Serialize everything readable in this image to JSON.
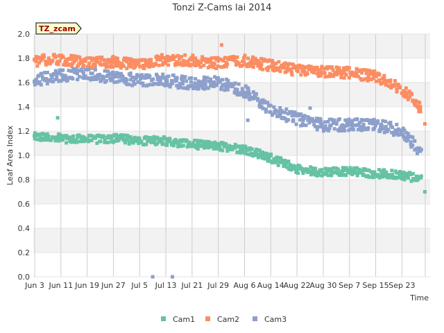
{
  "chart_data": {
    "type": "scatter",
    "title": "Tonzi Z-Cams lai 2014",
    "station_label": "TZ_zcam",
    "xlabel": "Time",
    "ylabel": "Leaf Area Index",
    "ylim": [
      0,
      2.0
    ],
    "yticks": [
      "0.0",
      "0.2",
      "0.4",
      "0.6",
      "0.8",
      "1.0",
      "1.2",
      "1.4",
      "1.6",
      "1.8",
      "2.0"
    ],
    "xlim": [
      "2014-06-03",
      "2014-09-30"
    ],
    "xticks": [
      "Jun 3",
      "Jun 11",
      "Jun 19",
      "Jun 27",
      "Jul 5",
      "Jul 13",
      "Jul 21",
      "Jul 29",
      "Aug 6",
      "Aug 14",
      "Aug 22",
      "Aug 30",
      "Sep 7",
      "Sep 15",
      "Sep 23"
    ],
    "grid": true,
    "legend_position": "bottom-center",
    "series": [
      {
        "name": "Cam1",
        "color": "#66c2a5",
        "trend": [
          [
            "2014-06-03",
            1.15
          ],
          [
            "2014-06-11",
            1.14
          ],
          [
            "2014-06-19",
            1.13
          ],
          [
            "2014-06-27",
            1.14
          ],
          [
            "2014-07-05",
            1.12
          ],
          [
            "2014-07-13",
            1.12
          ],
          [
            "2014-07-21",
            1.09
          ],
          [
            "2014-07-29",
            1.08
          ],
          [
            "2014-08-06",
            1.05
          ],
          [
            "2014-08-14",
            0.98
          ],
          [
            "2014-08-22",
            0.89
          ],
          [
            "2014-08-30",
            0.86
          ],
          [
            "2014-09-07",
            0.87
          ],
          [
            "2014-09-15",
            0.85
          ],
          [
            "2014-09-23",
            0.84
          ],
          [
            "2014-09-29",
            0.8
          ]
        ],
        "outliers": [
          [
            "2014-06-10",
            1.31
          ],
          [
            "2014-09-30",
            0.7
          ]
        ]
      },
      {
        "name": "Cam2",
        "color": "#fc8d62",
        "trend": [
          [
            "2014-06-03",
            1.78
          ],
          [
            "2014-06-11",
            1.79
          ],
          [
            "2014-06-19",
            1.76
          ],
          [
            "2014-06-27",
            1.77
          ],
          [
            "2014-07-05",
            1.75
          ],
          [
            "2014-07-13",
            1.79
          ],
          [
            "2014-07-21",
            1.78
          ],
          [
            "2014-07-29",
            1.76
          ],
          [
            "2014-08-06",
            1.78
          ],
          [
            "2014-08-14",
            1.74
          ],
          [
            "2014-08-22",
            1.7
          ],
          [
            "2014-08-30",
            1.69
          ],
          [
            "2014-09-07",
            1.68
          ],
          [
            "2014-09-15",
            1.65
          ],
          [
            "2014-09-23",
            1.55
          ],
          [
            "2014-09-29",
            1.38
          ]
        ],
        "outliers": [
          [
            "2014-07-30",
            1.91
          ],
          [
            "2014-09-30",
            1.26
          ]
        ]
      },
      {
        "name": "Cam3",
        "color": "#8da0cb",
        "trend": [
          [
            "2014-06-03",
            1.62
          ],
          [
            "2014-06-11",
            1.66
          ],
          [
            "2014-06-19",
            1.67
          ],
          [
            "2014-06-27",
            1.64
          ],
          [
            "2014-07-05",
            1.62
          ],
          [
            "2014-07-13",
            1.62
          ],
          [
            "2014-07-21",
            1.59
          ],
          [
            "2014-07-29",
            1.6
          ],
          [
            "2014-08-06",
            1.53
          ],
          [
            "2014-08-14",
            1.38
          ],
          [
            "2014-08-22",
            1.3
          ],
          [
            "2014-08-30",
            1.25
          ],
          [
            "2014-09-07",
            1.25
          ],
          [
            "2014-09-15",
            1.25
          ],
          [
            "2014-09-23",
            1.2
          ],
          [
            "2014-09-29",
            1.03
          ]
        ],
        "outliers": [
          [
            "2014-07-09",
            0.0
          ],
          [
            "2014-07-15",
            0.0
          ],
          [
            "2014-08-07",
            1.29
          ],
          [
            "2014-08-26",
            1.39
          ]
        ]
      }
    ]
  }
}
